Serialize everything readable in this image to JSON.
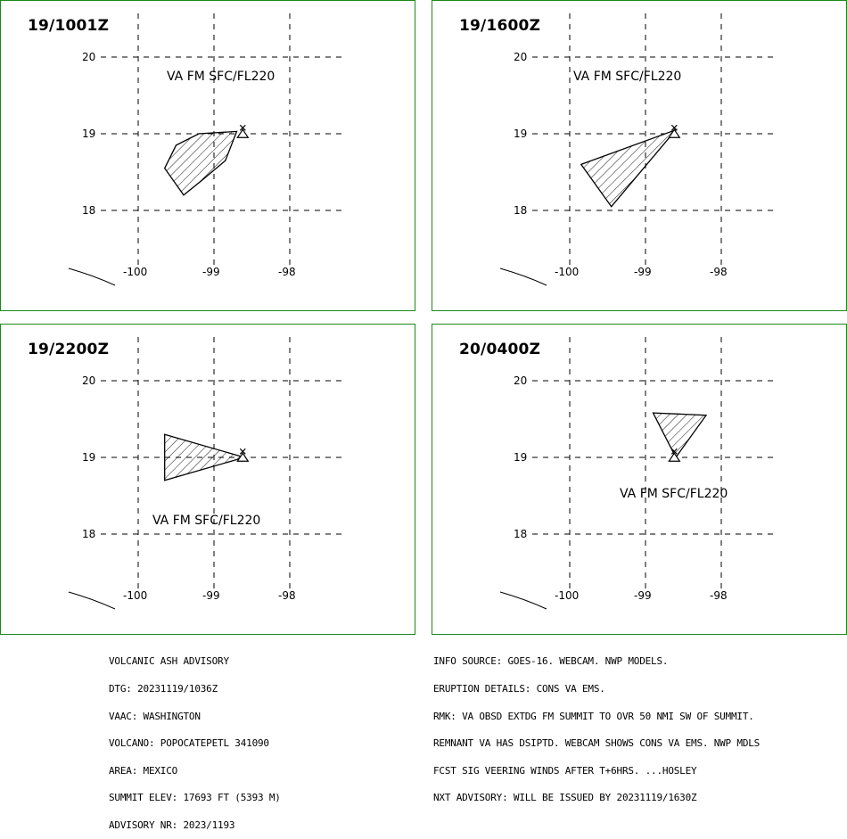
{
  "panels": [
    {
      "time": "19/1001Z",
      "label": "VA FM SFC/FL220",
      "lat_ticks": [
        "20",
        "19",
        "18"
      ],
      "lon_ticks": [
        "-100",
        "-99",
        "-98"
      ],
      "ash_polygon": [
        [
          -99.65,
          18.55
        ],
        [
          -99.5,
          18.85
        ],
        [
          -99.2,
          19.0
        ],
        [
          -98.7,
          19.03
        ],
        [
          -98.85,
          18.65
        ],
        [
          -99.15,
          18.4
        ],
        [
          -99.4,
          18.2
        ]
      ]
    },
    {
      "time": "19/1600Z",
      "label": "VA FM SFC/FL220",
      "lat_ticks": [
        "20",
        "19",
        "18"
      ],
      "lon_ticks": [
        "-100",
        "-99",
        "-98"
      ],
      "ash_polygon": [
        [
          -99.85,
          18.6
        ],
        [
          -98.6,
          19.05
        ],
        [
          -99.45,
          18.05
        ]
      ]
    },
    {
      "time": "19/2200Z",
      "label": "VA FM SFC/FL220",
      "lat_ticks": [
        "20",
        "19",
        "18"
      ],
      "lon_ticks": [
        "-100",
        "-99",
        "-98"
      ],
      "ash_polygon": [
        [
          -99.65,
          19.3
        ],
        [
          -98.6,
          19.0
        ],
        [
          -99.65,
          18.7
        ]
      ]
    },
    {
      "time": "20/0400Z",
      "label": "VA FM SFC/FL220",
      "lat_ticks": [
        "20",
        "19",
        "18"
      ],
      "lon_ticks": [
        "-100",
        "-99",
        "-98"
      ],
      "ash_polygon": [
        [
          -98.9,
          19.58
        ],
        [
          -98.2,
          19.55
        ],
        [
          -98.6,
          19.0
        ]
      ]
    }
  ],
  "summit": {
    "lon": -98.62,
    "lat": 19.02
  },
  "advisory_left": [
    "VOLCANIC ASH ADVISORY",
    "DTG: 20231119/1036Z",
    "VAAC: WASHINGTON",
    "VOLCANO: POPOCATEPETL 341090",
    "AREA: MEXICO",
    "SUMMIT ELEV: 17693 FT (5393 M)",
    "ADVISORY NR: 2023/1193"
  ],
  "advisory_right": [
    "INFO SOURCE: GOES-16. WEBCAM. NWP MODELS.",
    "ERUPTION DETAILS: CONS VA EMS.",
    "RMK: VA OBSD EXTDG FM SUMMIT TO OVR 50 NMI SW OF SUMMIT.",
    "REMNANT VA HAS DSIPTD. WEBCAM SHOWS CONS VA EMS. NWP MDLS",
    "FCST SIG VEERING WINDS AFTER T+6HRS. ...HOSLEY",
    "NXT ADVISORY: WILL BE ISSUED BY 20231119/1630Z"
  ],
  "colors": {
    "panel_border": "#1a8a1a",
    "lines": "#000000"
  }
}
